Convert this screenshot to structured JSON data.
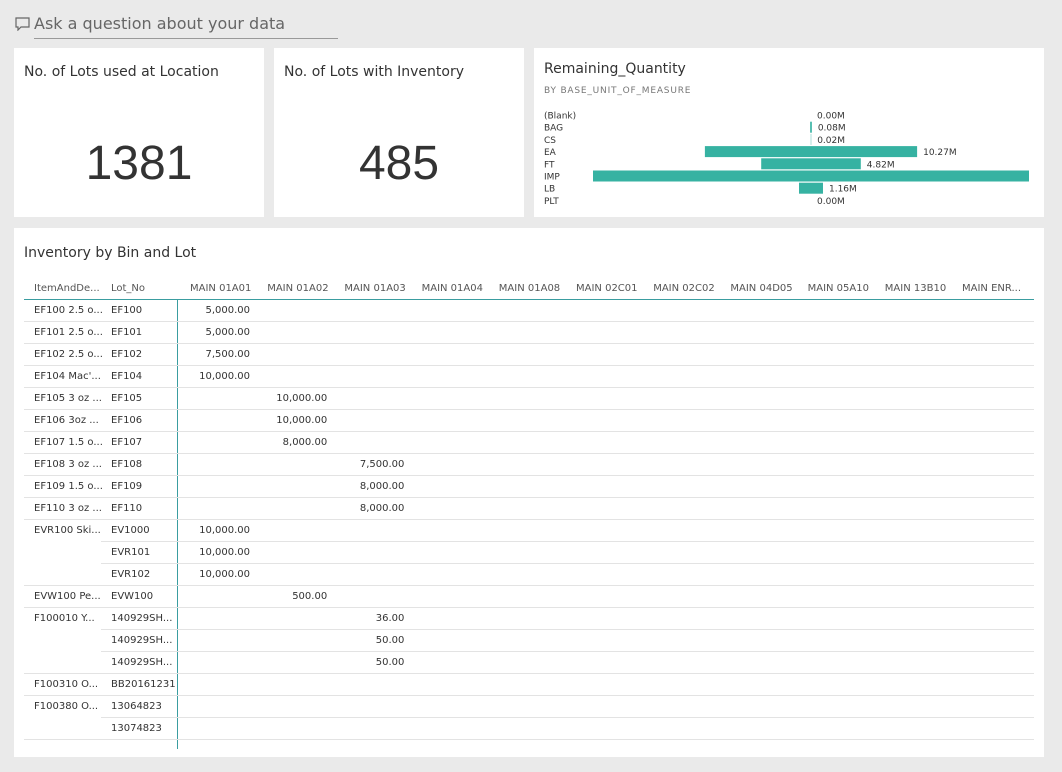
{
  "qna": {
    "placeholder": "Ask a question about your data"
  },
  "cards": [
    {
      "title": "No. of Lots used at Location",
      "value": "1381"
    },
    {
      "title": "No. of Lots with Inventory",
      "value": "485"
    }
  ],
  "chart_data": {
    "type": "funnel",
    "title": "Remaining_Quantity",
    "subtitle": "BY BASE_UNIT_OF_MEASURE",
    "categories": [
      "(Blank)",
      "BAG",
      "CS",
      "EA",
      "FT",
      "IMP",
      "LB",
      "PLT"
    ],
    "values": [
      0,
      0.08,
      0.02,
      10.27,
      4.82,
      21.1,
      1.16,
      0
    ],
    "value_labels": [
      "0.00M",
      "0.08M",
      "0.02M",
      "10.27M",
      "4.82M",
      null,
      "1.16M",
      "0.00M"
    ],
    "color": "#36b2a2"
  },
  "table": {
    "title": "Inventory by Bin and Lot",
    "columns": [
      "ItemAndDe...",
      "Lot_No",
      "MAIN 01A01",
      "MAIN 01A02",
      "MAIN 01A03",
      "MAIN 01A04",
      "MAIN 01A08",
      "MAIN 02C01",
      "MAIN 02C02",
      "MAIN 04D05",
      "MAIN 05A10",
      "MAIN 13B10",
      "MAIN ENR..."
    ],
    "rows": [
      [
        "EF100 2.5 o...",
        "EF100",
        "5,000.00",
        null,
        null,
        null,
        null,
        null,
        null,
        null,
        null,
        null,
        null
      ],
      [
        "EF101 2.5 o...",
        "EF101",
        "5,000.00",
        null,
        null,
        null,
        null,
        null,
        null,
        null,
        null,
        null,
        null
      ],
      [
        "EF102 2.5 o...",
        "EF102",
        "7,500.00",
        null,
        null,
        null,
        null,
        null,
        null,
        null,
        null,
        null,
        null
      ],
      [
        "EF104 Mac'...",
        "EF104",
        "10,000.00",
        null,
        null,
        null,
        null,
        null,
        null,
        null,
        null,
        null,
        null
      ],
      [
        "EF105 3 oz ...",
        "EF105",
        null,
        "10,000.00",
        null,
        null,
        null,
        null,
        null,
        null,
        null,
        null,
        null
      ],
      [
        "EF106 3oz ...",
        "EF106",
        null,
        "10,000.00",
        null,
        null,
        null,
        null,
        null,
        null,
        null,
        null,
        null
      ],
      [
        "EF107 1.5 o...",
        "EF107",
        null,
        "8,000.00",
        null,
        null,
        null,
        null,
        null,
        null,
        null,
        null,
        null
      ],
      [
        "EF108 3 oz ...",
        "EF108",
        null,
        null,
        "7,500.00",
        null,
        null,
        null,
        null,
        null,
        null,
        null,
        null
      ],
      [
        "EF109 1.5 o...",
        "EF109",
        null,
        null,
        "8,000.00",
        null,
        null,
        null,
        null,
        null,
        null,
        null,
        null
      ],
      [
        "EF110 3 oz ...",
        "EF110",
        null,
        null,
        "8,000.00",
        null,
        null,
        null,
        null,
        null,
        null,
        null,
        null
      ],
      [
        "EVR100 Ski...",
        "EV1000",
        "10,000.00",
        null,
        null,
        null,
        null,
        null,
        null,
        null,
        null,
        null,
        null
      ],
      [
        null,
        "EVR101",
        "10,000.00",
        null,
        null,
        null,
        null,
        null,
        null,
        null,
        null,
        null,
        null
      ],
      [
        null,
        "EVR102",
        "10,000.00",
        null,
        null,
        null,
        null,
        null,
        null,
        null,
        null,
        null,
        null
      ],
      [
        "EVW100 Pe...",
        "EVW100",
        null,
        "500.00",
        null,
        null,
        null,
        null,
        null,
        null,
        null,
        null,
        null
      ],
      [
        "F100010 Y...",
        "140929SH...",
        null,
        null,
        "36.00",
        null,
        null,
        null,
        null,
        null,
        null,
        null,
        null
      ],
      [
        null,
        "140929SH...",
        null,
        null,
        "50.00",
        null,
        null,
        null,
        null,
        null,
        null,
        null,
        null
      ],
      [
        null,
        "140929SH...",
        null,
        null,
        "50.00",
        null,
        null,
        null,
        null,
        null,
        null,
        null,
        null
      ],
      [
        "F100310 O...",
        "BB20161231",
        null,
        null,
        null,
        null,
        null,
        null,
        null,
        null,
        null,
        null,
        null
      ],
      [
        "F100380 O...",
        "13064823",
        null,
        null,
        null,
        null,
        null,
        null,
        null,
        null,
        null,
        null,
        null
      ],
      [
        null,
        "13074823",
        null,
        null,
        null,
        null,
        null,
        null,
        null,
        null,
        null,
        null,
        null
      ]
    ]
  }
}
